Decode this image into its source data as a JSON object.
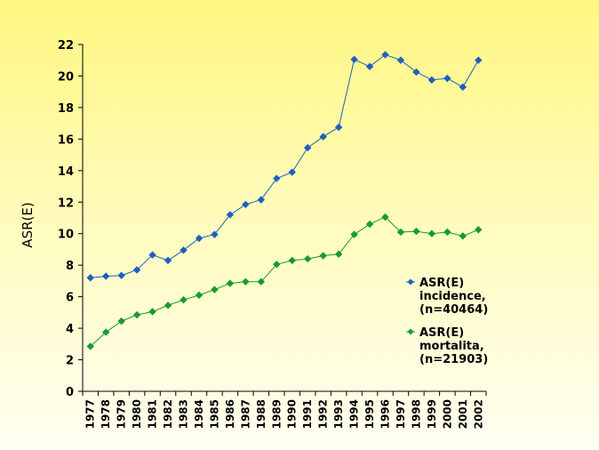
{
  "chart_data": {
    "type": "line",
    "title": "",
    "xlabel": "",
    "ylabel": "ASR(E)",
    "ylim": [
      0,
      22
    ],
    "yticks": [
      0,
      2,
      4,
      6,
      8,
      10,
      12,
      14,
      16,
      18,
      20,
      22
    ],
    "grid": false,
    "legend_position": "right",
    "categories": [
      "1977",
      "1978",
      "1979",
      "1980",
      "1981",
      "1982",
      "1983",
      "1984",
      "1985",
      "1986",
      "1987",
      "1988",
      "1989",
      "1990",
      "1991",
      "1992",
      "1993",
      "1994",
      "1995",
      "1996",
      "1997",
      "1998",
      "1999",
      "2000",
      "2001",
      "2002"
    ],
    "series": [
      {
        "name": "ASR(E) incidence, (n=40464)",
        "legend_lines": [
          "ASR(E)",
          "incidence,",
          "(n=40464)"
        ],
        "color": "#1f5fbf",
        "marker": "diamond",
        "values": [
          7.2,
          7.3,
          7.35,
          7.7,
          8.65,
          8.3,
          8.95,
          9.7,
          9.95,
          11.2,
          11.85,
          12.15,
          13.5,
          13.9,
          15.45,
          16.15,
          16.75,
          21.05,
          20.6,
          21.35,
          21.0,
          20.25,
          19.75,
          19.85,
          19.3,
          21.0
        ]
      },
      {
        "name": "ASR(E) mortalita, (n=21903)",
        "legend_lines": [
          "ASR(E)",
          "mortalita,",
          "(n=21903)"
        ],
        "color": "#1a9a2c",
        "marker": "diamond",
        "values": [
          2.85,
          3.75,
          4.45,
          4.85,
          5.05,
          5.45,
          5.8,
          6.1,
          6.45,
          6.85,
          6.95,
          6.95,
          8.05,
          8.3,
          8.4,
          8.6,
          8.7,
          9.95,
          10.6,
          11.05,
          10.1,
          10.15,
          10.0,
          10.1,
          9.85,
          10.25
        ]
      }
    ]
  }
}
